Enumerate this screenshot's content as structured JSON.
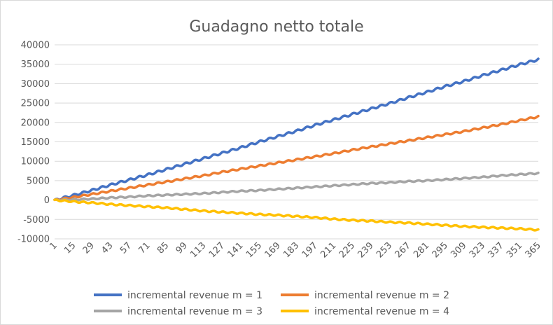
{
  "chart_data": {
    "type": "line",
    "title": "Guadagno netto totale",
    "xlabel": "",
    "ylabel": "",
    "x_range": [
      1,
      365
    ],
    "x_tick_labels": [
      1,
      15,
      29,
      43,
      57,
      71,
      85,
      99,
      113,
      127,
      141,
      155,
      169,
      183,
      197,
      211,
      225,
      239,
      253,
      267,
      281,
      295,
      309,
      323,
      337,
      351,
      365
    ],
    "ylim": [
      -10000,
      40000
    ],
    "y_ticks": [
      40000,
      35000,
      30000,
      25000,
      20000,
      15000,
      10000,
      5000,
      0,
      -5000,
      -10000
    ],
    "grid": true,
    "legend_position": "bottom",
    "series": [
      {
        "name": "incremental revenue m = 1",
        "color": "#4472C4",
        "x": [
          1,
          15,
          29,
          43,
          57,
          71,
          85,
          99,
          113,
          127,
          141,
          155,
          169,
          183,
          197,
          211,
          225,
          239,
          253,
          267,
          281,
          295,
          309,
          323,
          337,
          351,
          365
        ],
        "values": [
          0,
          1200,
          2500,
          3900,
          5200,
          6500,
          7900,
          9300,
          10700,
          12100,
          13500,
          15000,
          16400,
          17800,
          19300,
          20700,
          22100,
          23500,
          24900,
          26400,
          27800,
          29300,
          30600,
          32100,
          33500,
          34900,
          36200
        ]
      },
      {
        "name": "incremental revenue m = 2",
        "color": "#ED7D31",
        "x": [
          1,
          15,
          29,
          43,
          57,
          71,
          85,
          99,
          113,
          127,
          141,
          155,
          169,
          183,
          197,
          211,
          225,
          239,
          253,
          267,
          281,
          295,
          309,
          323,
          337,
          351,
          365
        ],
        "values": [
          0,
          700,
          1500,
          2300,
          3100,
          3900,
          4700,
          5500,
          6300,
          7200,
          8000,
          8800,
          9600,
          10400,
          11200,
          12000,
          12900,
          13700,
          14500,
          15300,
          16100,
          16900,
          17700,
          18600,
          19500,
          20500,
          21500
        ]
      },
      {
        "name": "incremental revenue m = 3",
        "color": "#A5A5A5",
        "x": [
          1,
          15,
          29,
          43,
          57,
          71,
          85,
          99,
          113,
          127,
          141,
          155,
          169,
          183,
          197,
          211,
          225,
          239,
          253,
          267,
          281,
          295,
          309,
          323,
          337,
          351,
          365
        ],
        "values": [
          0,
          100,
          300,
          600,
          800,
          1100,
          1300,
          1500,
          1700,
          2000,
          2300,
          2500,
          2800,
          3100,
          3400,
          3700,
          4000,
          4300,
          4500,
          4800,
          5000,
          5300,
          5600,
          5900,
          6300,
          6600,
          6900
        ]
      },
      {
        "name": "incremental revenue m = 4",
        "color": "#FFC000",
        "x": [
          1,
          15,
          29,
          43,
          57,
          71,
          85,
          99,
          113,
          127,
          141,
          155,
          169,
          183,
          197,
          211,
          225,
          239,
          253,
          267,
          281,
          295,
          309,
          323,
          337,
          351,
          365
        ],
        "values": [
          0,
          -400,
          -700,
          -1100,
          -1400,
          -1700,
          -2000,
          -2400,
          -2800,
          -3100,
          -3400,
          -3700,
          -3900,
          -4200,
          -4500,
          -4900,
          -5200,
          -5400,
          -5700,
          -5900,
          -6200,
          -6500,
          -6800,
          -7000,
          -7200,
          -7400,
          -7700
        ]
      }
    ]
  }
}
